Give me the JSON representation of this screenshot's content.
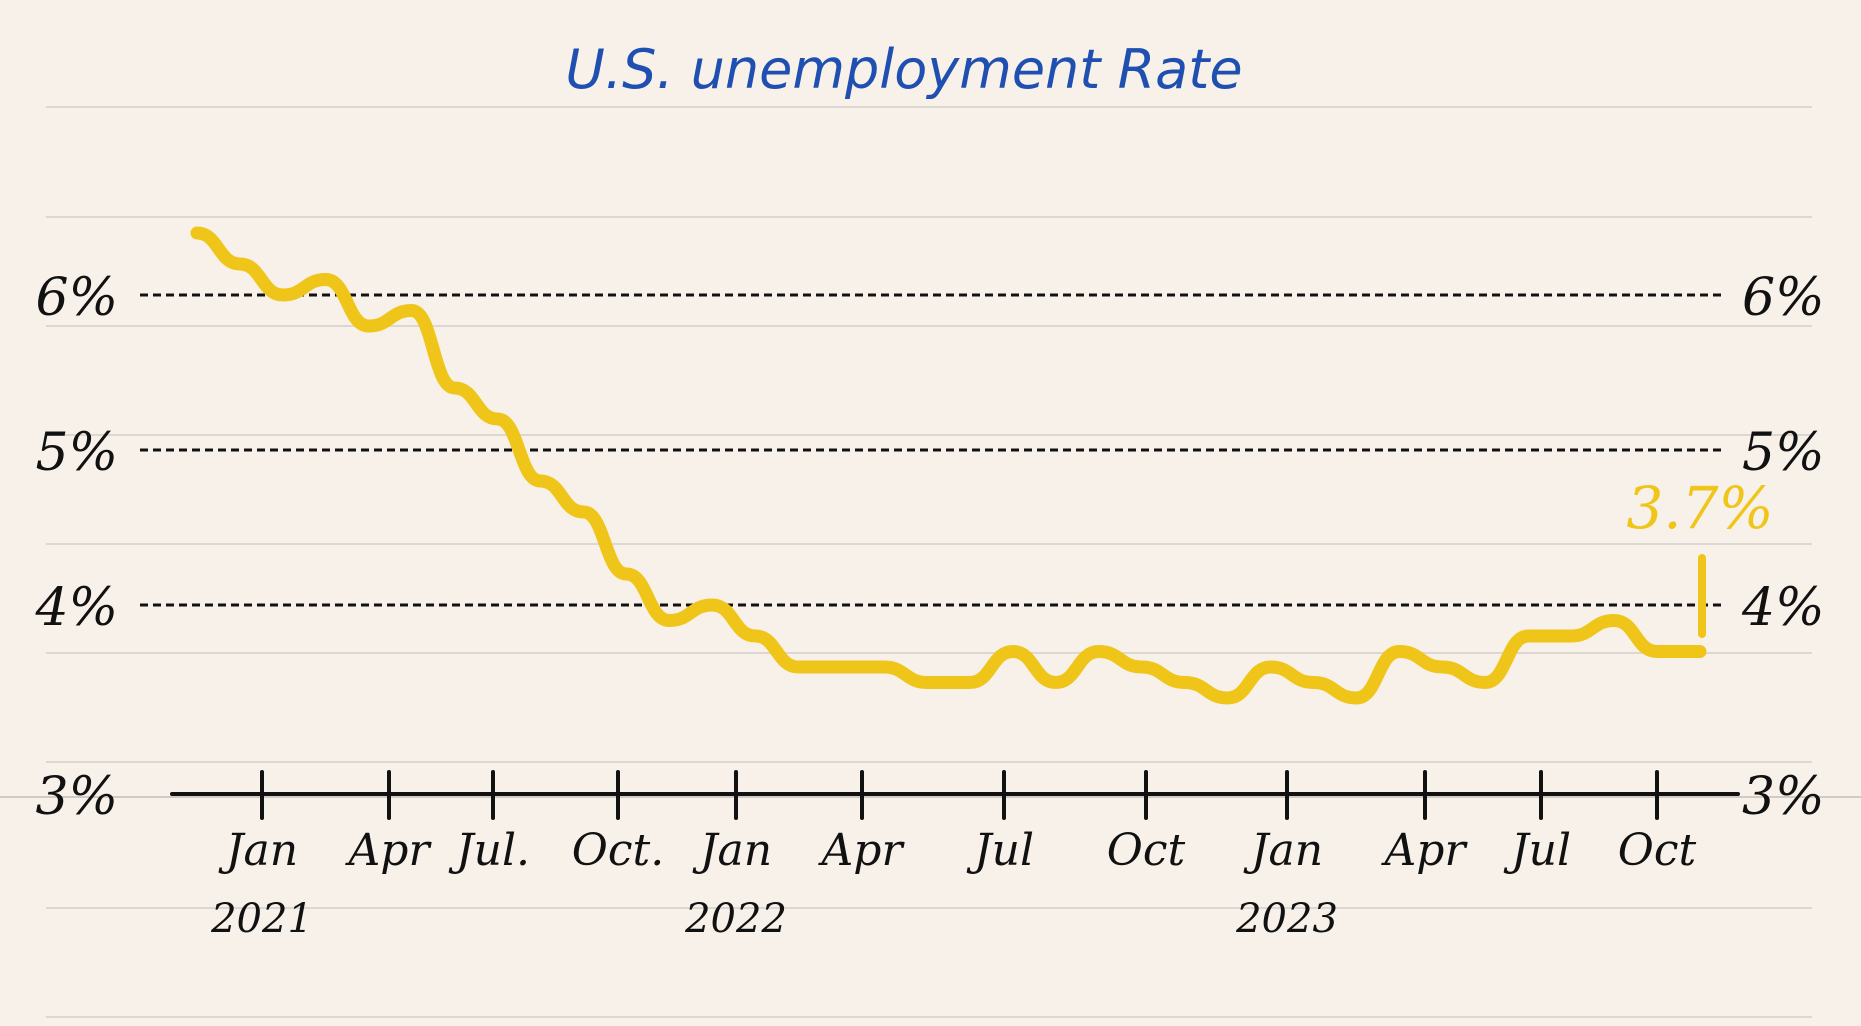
{
  "chart_data": {
    "type": "line",
    "title": "U.S. unemployment Rate",
    "x_tick_labels": [
      "Jan",
      "Apr",
      "Jul.",
      "Oct.",
      "Jan",
      "Apr",
      "Jul",
      "Oct",
      "Jan",
      "Apr",
      "Jul",
      "Oct"
    ],
    "year_labels": [
      "2021",
      "2022",
      "2023"
    ],
    "y_ticks_left": [
      "6%",
      "5%",
      "4%",
      "3%"
    ],
    "y_ticks_right": [
      "6%",
      "5%",
      "4%",
      "3%"
    ],
    "ylim": [
      3.0,
      6.6
    ],
    "gridlines": "dashed",
    "series": [
      {
        "x": [
          "2021-01",
          "2021-02",
          "2021-03",
          "2021-04",
          "2021-05",
          "2021-06",
          "2021-07",
          "2021-08",
          "2021-09",
          "2021-10",
          "2021-11",
          "2021-12",
          "2022-01",
          "2022-02",
          "2022-03",
          "2022-04",
          "2022-05",
          "2022-06",
          "2022-07",
          "2022-08",
          "2022-09",
          "2022-10",
          "2022-11",
          "2022-12",
          "2023-01",
          "2023-02",
          "2023-03",
          "2023-04",
          "2023-05",
          "2023-06",
          "2023-07",
          "2023-08",
          "2023-09",
          "2023-10",
          "2023-11",
          "2023-12"
        ],
        "values": [
          6.4,
          6.2,
          6.0,
          6.1,
          5.8,
          5.9,
          5.4,
          5.2,
          4.8,
          4.6,
          4.2,
          3.9,
          4.0,
          3.8,
          3.6,
          3.6,
          3.6,
          3.5,
          3.5,
          3.7,
          3.5,
          3.7,
          3.6,
          3.5,
          3.4,
          3.6,
          3.5,
          3.4,
          3.7,
          3.6,
          3.5,
          3.8,
          3.8,
          3.9,
          3.7,
          3.7
        ],
        "color": "#f0c51a"
      }
    ],
    "annotation": {
      "text": "3.7%",
      "color": "#f0c51a"
    }
  },
  "colors": {
    "background": "#f7f1ea",
    "title": "#1f4fb0",
    "line": "#f0c51a",
    "axis": "#111111",
    "ruled": "#d9d4ce"
  }
}
